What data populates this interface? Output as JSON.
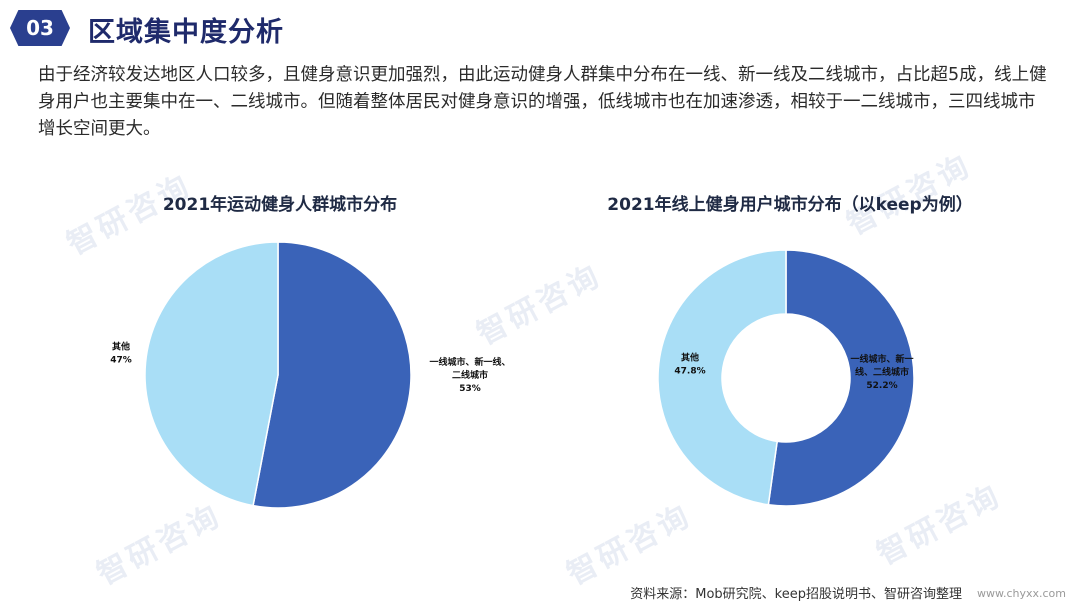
{
  "header": {
    "badge": "03",
    "title": "区域集中度分析"
  },
  "intro": "由于经济较发达地区人口较多，且健身意识更加强烈，由此运动健身人群集中分布在一线、新一线及二线城市，占比超5成，线上健身用户也主要集中在一、二线城市。但随着整体居民对健身意识的增强，低线城市也在加速渗透，相较于一二线城市，三四线城市增长空间更大。",
  "colors": {
    "dark": "#3a63b8",
    "light": "#a9def6",
    "title": "#1f2a6b"
  },
  "chart_data": [
    {
      "type": "pie",
      "title": "2021年运动健身人群城市分布",
      "slices": [
        {
          "label_lines": [
            "一线城市、新一线、",
            "二线城市"
          ],
          "value": 53,
          "display": "53%",
          "color": "#3a63b8"
        },
        {
          "label_lines": [
            "其他"
          ],
          "value": 47,
          "display": "47%",
          "color": "#a9def6"
        }
      ]
    },
    {
      "type": "pie",
      "variant": "donut",
      "title": "2021年线上健身用户城市分布（以keep为例）",
      "slices": [
        {
          "label_lines": [
            "一线城市、新一",
            "线、二线城市"
          ],
          "value": 52.2,
          "display": "52.2%",
          "color": "#3a63b8"
        },
        {
          "label_lines": [
            "其他"
          ],
          "value": 47.8,
          "display": "47.8%",
          "color": "#a9def6"
        }
      ]
    }
  ],
  "footer": {
    "source": "资料来源：Mob研究院、keep招股说明书、智研咨询整理",
    "site": "www.chyxx.com"
  },
  "watermark": "智研咨询"
}
